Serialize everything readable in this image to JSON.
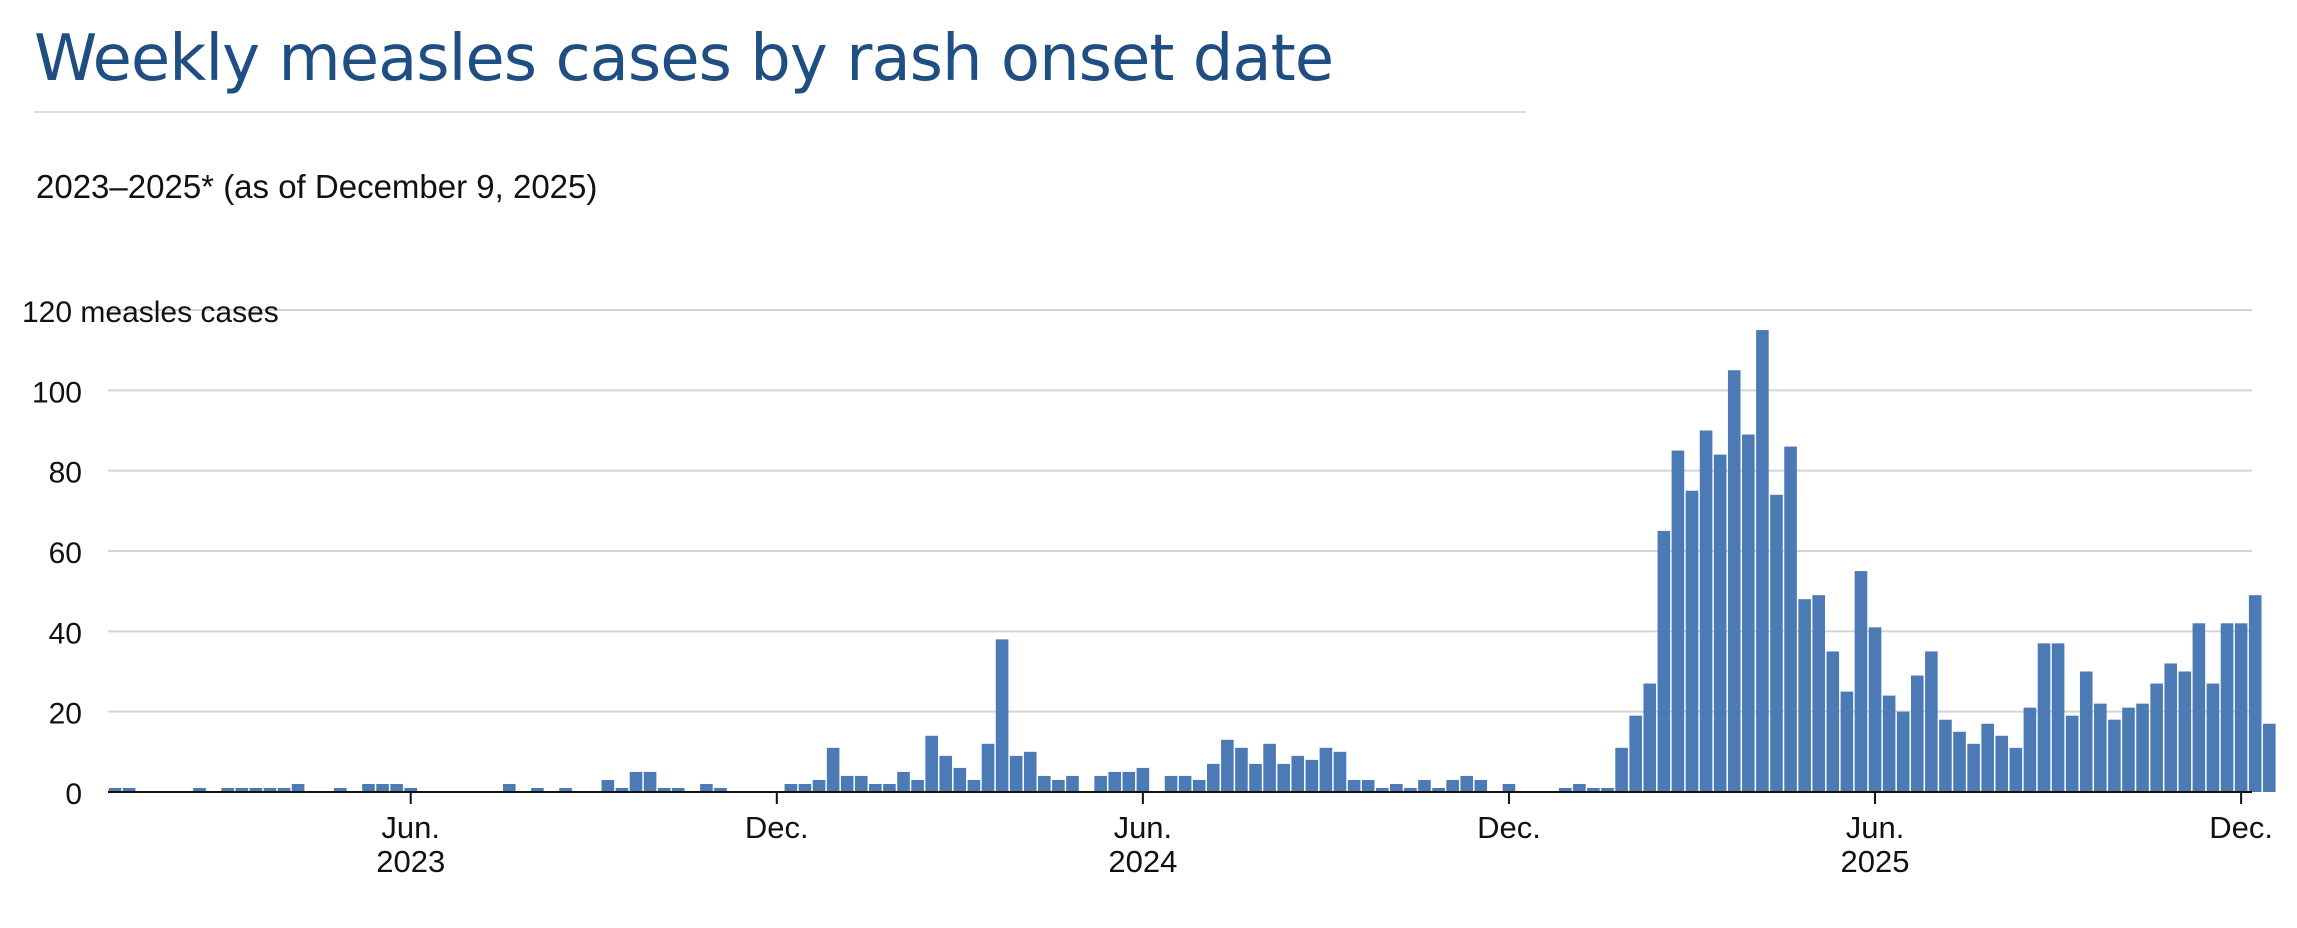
{
  "page": {
    "title": "Weekly measles cases by rash onset date",
    "subtitle": "2023–2025* (as of December 9, 2025)"
  },
  "chart_data": {
    "type": "bar",
    "title": "Weekly measles cases by rash onset date",
    "subtitle": "2023–2025* (as of December 9, 2025)",
    "xlabel": "",
    "ylabel": "measles cases",
    "ylim": [
      0,
      120
    ],
    "yticks": [
      0,
      20,
      40,
      60,
      80,
      100,
      120
    ],
    "top_tick_label": "120 measles cases",
    "grid": true,
    "x_tick_labels": [
      {
        "month": "Jun.",
        "year": "2023",
        "week_index": 21.5
      },
      {
        "month": "Dec.",
        "year": "",
        "week_index": 47.5
      },
      {
        "month": "Jun.",
        "year": "2024",
        "week_index": 73.5
      },
      {
        "month": "Dec.",
        "year": "",
        "week_index": 99.5
      },
      {
        "month": "Jun.",
        "year": "2025",
        "week_index": 125.5
      },
      {
        "month": "Dec.",
        "year": "",
        "week_index": 151.5
      }
    ],
    "bar_color": "#4b7ab5",
    "weekly_cases": [
      1,
      1,
      0,
      0,
      0,
      0,
      1,
      0,
      1,
      1,
      1,
      1,
      1,
      2,
      0,
      0,
      1,
      0,
      2,
      2,
      2,
      1,
      0,
      0,
      0,
      0,
      0,
      0,
      2,
      0,
      1,
      0,
      1,
      0,
      0,
      3,
      1,
      5,
      5,
      1,
      1,
      0,
      2,
      1,
      0,
      0,
      0,
      0,
      2,
      2,
      3,
      11,
      4,
      4,
      2,
      2,
      5,
      3,
      14,
      9,
      6,
      3,
      12,
      38,
      9,
      10,
      4,
      3,
      4,
      0,
      4,
      5,
      5,
      6,
      0,
      4,
      4,
      3,
      7,
      13,
      11,
      7,
      12,
      7,
      9,
      8,
      11,
      10,
      3,
      3,
      1,
      2,
      1,
      3,
      1,
      3,
      4,
      3,
      0,
      2,
      0,
      0,
      0,
      1,
      2,
      1,
      1,
      11,
      19,
      27,
      65,
      85,
      75,
      90,
      84,
      105,
      89,
      115,
      74,
      86,
      48,
      49,
      35,
      25,
      55,
      41,
      24,
      20,
      29,
      35,
      18,
      15,
      12,
      17,
      14,
      11,
      21,
      37,
      37,
      19,
      30,
      22,
      18,
      21,
      22,
      27,
      32,
      30,
      42,
      27,
      42,
      42,
      49,
      17
    ]
  }
}
